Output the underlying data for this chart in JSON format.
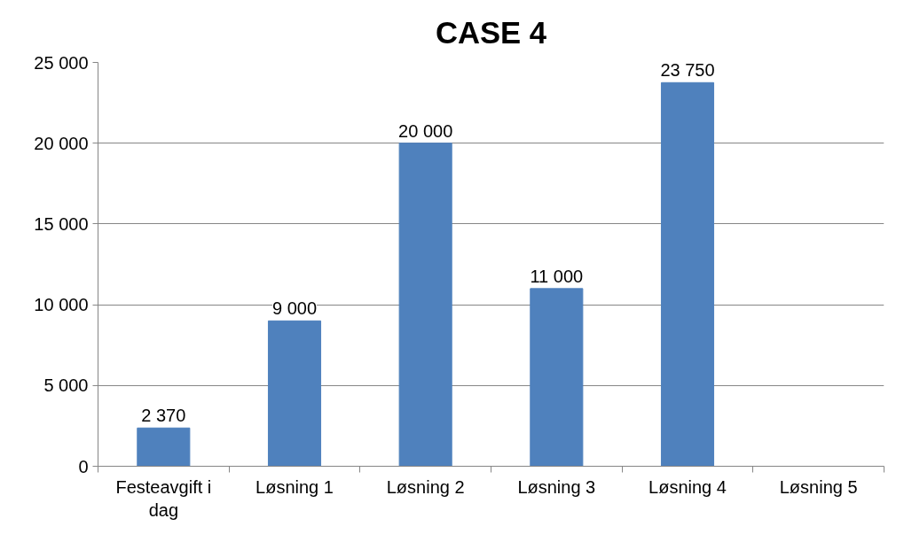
{
  "chart_data": {
    "type": "bar",
    "title": "CASE 4",
    "categories": [
      "Festeavgift i dag",
      "Løsning 1",
      "Løsning 2",
      "Løsning 3",
      "Løsning 4",
      "Løsning 5"
    ],
    "values": [
      2370,
      9000,
      20000,
      11000,
      23750,
      null
    ],
    "value_labels": [
      "2 370",
      "9 000",
      "20 000",
      "11 000",
      "23 750",
      null
    ],
    "color": "#4f81bd",
    "ylim": [
      0,
      25000
    ],
    "yticks": [
      {
        "value": 0,
        "label": "0"
      },
      {
        "value": 5000,
        "label": "5 000"
      },
      {
        "value": 10000,
        "label": "10 000"
      },
      {
        "value": 15000,
        "label": "15 000"
      },
      {
        "value": 20000,
        "label": "20 000"
      },
      {
        "value": 25000,
        "label": "25 000"
      }
    ],
    "grid": "y"
  }
}
